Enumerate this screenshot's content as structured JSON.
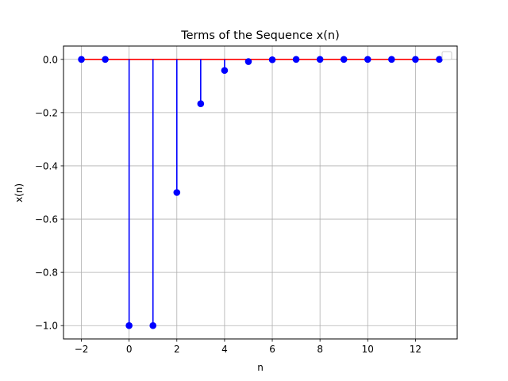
{
  "chart_data": {
    "type": "stem",
    "title": "Terms of the Sequence x(n)",
    "xlabel": "n",
    "ylabel": "x(n)",
    "xlim": [
      -2.75,
      13.75
    ],
    "ylim": [
      -1.05,
      0.05
    ],
    "x_ticks": [
      -2,
      0,
      2,
      4,
      6,
      8,
      10,
      12
    ],
    "x_tick_labels": [
      "−2",
      "0",
      "2",
      "4",
      "6",
      "8",
      "10",
      "12"
    ],
    "y_ticks": [
      -1.0,
      -0.8,
      -0.6,
      -0.4,
      -0.2,
      0.0
    ],
    "y_tick_labels": [
      "−1.0",
      "−0.8",
      "−0.6",
      "−0.4",
      "−0.2",
      "0.0"
    ],
    "grid": true,
    "legend": "top-right, empty",
    "series": [
      {
        "x": [
          -2,
          -1,
          0,
          1,
          2,
          3,
          4,
          5,
          6,
          7,
          8,
          9,
          10,
          11,
          12,
          13
        ],
        "y": [
          0,
          0,
          -1.0,
          -1.0,
          -0.5,
          -0.1667,
          -0.0417,
          -0.0083,
          -0.0014,
          -0.0002,
          0,
          0,
          0,
          0,
          0,
          0
        ],
        "marker_color": "#0000ff",
        "stem_color": "#0000ff",
        "baseline_color": "#ff0000"
      }
    ]
  }
}
